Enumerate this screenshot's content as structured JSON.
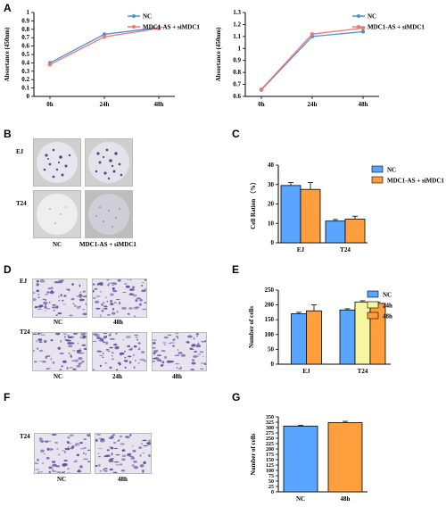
{
  "panel_letters": {
    "a": "A",
    "b": "B",
    "c": "C",
    "d": "D",
    "e": "E",
    "f": "F",
    "g": "G"
  },
  "images": {
    "b_rows": [
      "EJ",
      "T24"
    ],
    "b_cols": [
      "NC",
      "MDC1-AS + siMDC1"
    ],
    "d_rows": [
      "EJ",
      "T24"
    ],
    "d_ej_cols": [
      "NC",
      "48h"
    ],
    "d_t24_cols": [
      "NC",
      "24h",
      "48h"
    ],
    "f_row": "T24",
    "f_cols": [
      "NC",
      "48h"
    ]
  },
  "colors": {
    "nc_line": "#4f8fd9",
    "si_line": "#f07878",
    "blue_bar": "#5aa5ff",
    "orange_bar": "#ff9e3c",
    "yellow_bar": "#f6f6a0",
    "cell_purple": "#5a4a9a",
    "dish_bg": "#e8e8e8"
  },
  "chart_data": [
    {
      "id": "a1",
      "type": "line",
      "ylabel": "Absortance (450nm)",
      "categories": [
        "0h",
        "24h",
        "48h"
      ],
      "ylim": [
        0,
        1.0
      ],
      "yticks": [
        "0",
        "0.1",
        "0.2",
        "0.3",
        "0.4",
        "0.5",
        "0.6",
        "0.7",
        "0.8",
        "0.9",
        "1"
      ],
      "series": [
        {
          "name": "NC",
          "values": [
            0.4,
            0.74,
            0.82
          ],
          "errors": [
            0.01,
            0.02,
            0.01
          ]
        },
        {
          "name": "MDC1-AS + siMDC1",
          "values": [
            0.38,
            0.71,
            0.81
          ],
          "errors": [
            0.01,
            0.02,
            0.01
          ]
        }
      ],
      "legend": "top-right"
    },
    {
      "id": "a2",
      "type": "line",
      "ylabel": "Absortance (450nm)",
      "categories": [
        "0h",
        "24h",
        "48h"
      ],
      "ylim": [
        0.6,
        1.3
      ],
      "yticks": [
        "0.6",
        "0.7",
        "0.8",
        "0.9",
        "1",
        "1.1",
        "1.2",
        "1.3"
      ],
      "series": [
        {
          "name": "NC",
          "values": [
            0.655,
            1.1,
            1.14
          ],
          "errors": [
            0.005,
            0.01,
            0.01
          ]
        },
        {
          "name": "MDC1-AS + siMDC1",
          "values": [
            0.66,
            1.12,
            1.17
          ],
          "errors": [
            0.005,
            0.01,
            0.01
          ]
        }
      ],
      "legend": "top-right"
    },
    {
      "id": "c",
      "type": "bar",
      "ylabel": "Cell Ration （%）",
      "categories": [
        "EJ",
        "T24"
      ],
      "ylim": [
        0,
        40
      ],
      "yticks": [
        "0",
        "10",
        "20",
        "30",
        "40"
      ],
      "series": [
        {
          "name": "NC",
          "values": [
            29.5,
            11.2
          ],
          "errors": [
            1.5,
            0.8
          ]
        },
        {
          "name": "MDC1-AS + siMDC1",
          "values": [
            27.5,
            12.2
          ],
          "errors": [
            3.5,
            1.5
          ]
        }
      ],
      "legend": "top-right"
    },
    {
      "id": "e",
      "type": "bar",
      "ylabel": "Number of cells",
      "categories": [
        "EJ",
        "T24"
      ],
      "ylim": [
        0,
        250
      ],
      "yticks": [
        "0",
        "50",
        "100",
        "150",
        "200",
        "250"
      ],
      "series": [
        {
          "name": "NC",
          "values": [
            170,
            183
          ],
          "errors": [
            5,
            4
          ]
        },
        {
          "name": "24h",
          "values": [
            null,
            210
          ],
          "errors": [
            0,
            4
          ]
        },
        {
          "name": "48h",
          "values": [
            180,
            205
          ],
          "errors": [
            20,
            5
          ]
        }
      ],
      "legend": "top-right"
    },
    {
      "id": "g",
      "type": "bar",
      "ylabel": "Number of cells",
      "categories": [
        "NC",
        "48h"
      ],
      "ylim": [
        0,
        350
      ],
      "yticks": [
        "0",
        "25",
        "50",
        "75",
        "100",
        "125",
        "150",
        "175",
        "200",
        "225",
        "250",
        "275",
        "300",
        "325",
        "350"
      ],
      "values": [
        307,
        323
      ],
      "errors": [
        3,
        6
      ]
    }
  ]
}
